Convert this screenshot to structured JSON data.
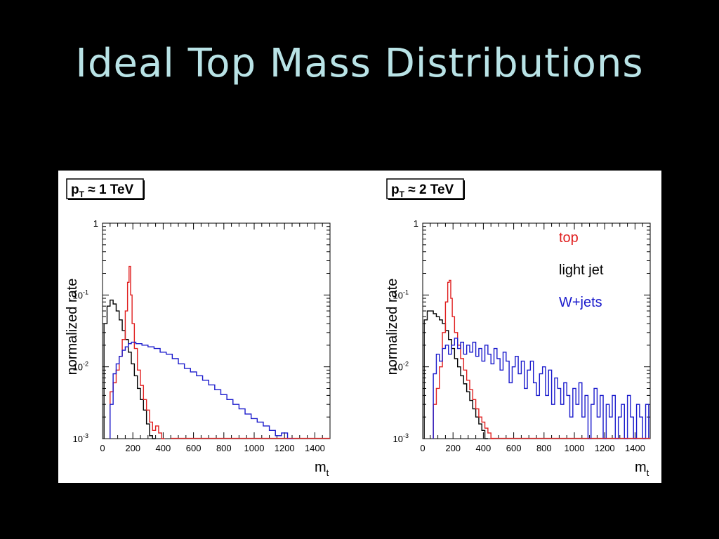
{
  "slide": {
    "title": "Ideal Top Mass Distributions"
  },
  "colors": {
    "top": "#e02020",
    "light_jet": "#000000",
    "wjets": "#1a1acc",
    "title": "#b9e3e6"
  },
  "chart_data": [
    {
      "type": "line",
      "panel_label_main": "p",
      "panel_label_sub": "T",
      "panel_label_rest": " ≈ 1 TeV",
      "ylabel": "normalized rate",
      "xlabel_main": "m",
      "xlabel_sub": "t",
      "xlim": [
        0,
        1500
      ],
      "ylim": [
        0.001,
        1
      ],
      "log_y": true,
      "x_ticks": [
        0,
        200,
        400,
        600,
        800,
        1000,
        1200,
        1400
      ],
      "x_tick_labels": [
        "0",
        "200",
        "400",
        "600",
        "800",
        "1000",
        "1200",
        "1400"
      ],
      "y_ticks": [
        0.001,
        0.01,
        0.1,
        1
      ],
      "y_tick_base": [
        "10",
        "10",
        "10",
        "1"
      ],
      "y_tick_exp": [
        "-3",
        "-2",
        "-1",
        ""
      ],
      "series": [
        {
          "key": "light_jet",
          "x": [
            20,
            40,
            60,
            80,
            100,
            120,
            140,
            160,
            180,
            200,
            220,
            240,
            260,
            280,
            300,
            320,
            340
          ],
          "y": [
            0.04,
            0.07,
            0.085,
            0.075,
            0.06,
            0.045,
            0.032,
            0.024,
            0.016,
            0.011,
            0.0075,
            0.005,
            0.0035,
            0.0025,
            0.0016,
            0.0011,
            0.001
          ]
        },
        {
          "key": "top",
          "x": [
            60,
            80,
            100,
            120,
            140,
            160,
            170,
            180,
            190,
            200,
            220,
            240,
            260,
            280,
            300,
            320,
            340,
            360,
            380,
            400
          ],
          "y": [
            0.0045,
            0.006,
            0.009,
            0.014,
            0.024,
            0.06,
            0.15,
            0.25,
            0.1,
            0.04,
            0.018,
            0.009,
            0.0055,
            0.0035,
            0.0025,
            0.0017,
            0.0013,
            0.0015,
            0.0012,
            0.001
          ]
        },
        {
          "key": "wjets",
          "x": [
            60,
            80,
            100,
            120,
            140,
            160,
            180,
            200,
            240,
            280,
            320,
            360,
            400,
            440,
            480,
            520,
            560,
            600,
            640,
            680,
            720,
            760,
            800,
            840,
            880,
            920,
            960,
            1000,
            1040,
            1080,
            1120,
            1160,
            1200,
            1240
          ],
          "y": [
            0.003,
            0.008,
            0.011,
            0.014,
            0.017,
            0.019,
            0.021,
            0.022,
            0.021,
            0.02,
            0.019,
            0.018,
            0.016,
            0.015,
            0.013,
            0.011,
            0.0095,
            0.0085,
            0.0075,
            0.0065,
            0.0056,
            0.0048,
            0.0041,
            0.0035,
            0.003,
            0.0026,
            0.0022,
            0.0019,
            0.0017,
            0.0015,
            0.0013,
            0.0011,
            0.0012,
            0.001
          ]
        }
      ]
    },
    {
      "type": "line",
      "panel_label_main": "p",
      "panel_label_sub": "T",
      "panel_label_rest": " ≈ 2 TeV",
      "ylabel": "normalized rate",
      "xlabel_main": "m",
      "xlabel_sub": "t",
      "xlim": [
        0,
        1500
      ],
      "ylim": [
        0.001,
        1
      ],
      "log_y": true,
      "x_ticks": [
        0,
        200,
        400,
        600,
        800,
        1000,
        1200,
        1400
      ],
      "x_tick_labels": [
        "0",
        "200",
        "400",
        "600",
        "800",
        "1000",
        "1200",
        "1400"
      ],
      "y_ticks": [
        0.001,
        0.01,
        0.1,
        1
      ],
      "y_tick_base": [
        "10",
        "10",
        "10",
        "1"
      ],
      "y_tick_exp": [
        "-3",
        "-2",
        "-1",
        ""
      ],
      "legend": {
        "position": "top-right",
        "labels": {
          "top": "top",
          "light_jet": "light jet",
          "wjets": "W+jets"
        }
      },
      "series": [
        {
          "key": "light_jet",
          "x": [
            20,
            40,
            60,
            80,
            100,
            120,
            140,
            160,
            180,
            200,
            220,
            240,
            260,
            280,
            300,
            320,
            340,
            360,
            380,
            400,
            420
          ],
          "y": [
            0.045,
            0.06,
            0.06,
            0.055,
            0.05,
            0.045,
            0.04,
            0.032,
            0.024,
            0.018,
            0.013,
            0.01,
            0.0075,
            0.0058,
            0.0045,
            0.0034,
            0.0026,
            0.002,
            0.0016,
            0.0013,
            0.001
          ]
        },
        {
          "key": "top",
          "x": [
            80,
            100,
            120,
            140,
            160,
            170,
            180,
            190,
            200,
            220,
            240,
            260,
            280,
            300,
            320,
            340,
            360,
            380,
            400,
            420,
            440,
            460
          ],
          "y": [
            0.003,
            0.005,
            0.01,
            0.03,
            0.08,
            0.15,
            0.16,
            0.09,
            0.05,
            0.03,
            0.02,
            0.013,
            0.009,
            0.0065,
            0.0048,
            0.0035,
            0.0026,
            0.002,
            0.0017,
            0.0014,
            0.0012,
            0.001
          ]
        },
        {
          "key": "wjets",
          "x": [
            80,
            100,
            120,
            140,
            160,
            180,
            200,
            220,
            240,
            260,
            280,
            300,
            320,
            340,
            360,
            380,
            400,
            420,
            440,
            460,
            480,
            500,
            520,
            540,
            560,
            580,
            600,
            620,
            640,
            660,
            680,
            700,
            720,
            740,
            760,
            780,
            800,
            820,
            840,
            860,
            880,
            900,
            920,
            940,
            960,
            980,
            1000,
            1020,
            1040,
            1060,
            1080,
            1100,
            1120,
            1140,
            1160,
            1180,
            1200,
            1220,
            1240,
            1260,
            1280,
            1300,
            1320,
            1340,
            1360,
            1380,
            1400,
            1420,
            1440,
            1460,
            1480
          ],
          "y": [
            0.008,
            0.015,
            0.012,
            0.018,
            0.02,
            0.015,
            0.02,
            0.025,
            0.018,
            0.022,
            0.015,
            0.02,
            0.016,
            0.022,
            0.014,
            0.018,
            0.012,
            0.02,
            0.015,
            0.011,
            0.018,
            0.013,
            0.009,
            0.016,
            0.012,
            0.006,
            0.01,
            0.014,
            0.008,
            0.012,
            0.005,
            0.009,
            0.012,
            0.006,
            0.004,
            0.008,
            0.01,
            0.004,
            0.009,
            0.003,
            0.007,
            0.005,
            0.003,
            0.006,
            0.004,
            0.002,
            0.005,
            0.003,
            0.006,
            0.002,
            0.004,
            0.001,
            0.003,
            0.005,
            0.002,
            0.004,
            0.001,
            0.003,
            0.002,
            0.004,
            0.001,
            0.002,
            0.003,
            0.001,
            0.004,
            0.002,
            0.001,
            0.003,
            0.002,
            0.001,
            0.003
          ]
        }
      ]
    }
  ]
}
